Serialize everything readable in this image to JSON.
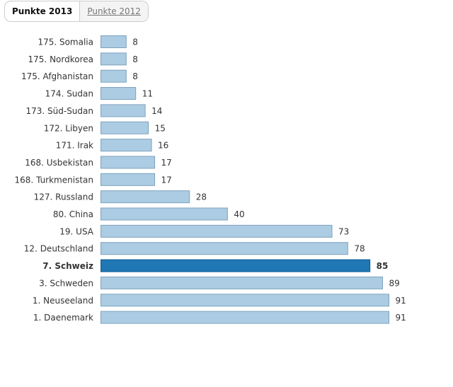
{
  "tabs": [
    {
      "label": "Punkte 2013",
      "active": true
    },
    {
      "label": "Punkte 2012",
      "active": false
    }
  ],
  "colors": {
    "bar": "#abcce3",
    "bar_border": "#7fa2bc",
    "highlight": "#1f77b4",
    "highlight_border": "#0d5a92"
  },
  "chart_data": {
    "type": "bar",
    "orientation": "horizontal",
    "categories": [
      "175. Somalia",
      "175. Nordkorea",
      "175. Afghanistan",
      "174. Sudan",
      "173. Süd-Sudan",
      "172. Libyen",
      "171. Irak",
      "168. Usbekistan",
      "168. Turkmenistan",
      "127. Russland",
      "80. China",
      "19. USA",
      "12. Deutschland",
      "7. Schweiz",
      "3. Schweden",
      "1. Neuseeland",
      "1. Daenemark"
    ],
    "values": [
      8,
      8,
      8,
      11,
      14,
      15,
      16,
      17,
      17,
      28,
      40,
      73,
      78,
      85,
      89,
      91,
      91
    ],
    "highlighted": "7. Schweiz",
    "xlim": [
      0,
      91
    ],
    "grid": false
  }
}
